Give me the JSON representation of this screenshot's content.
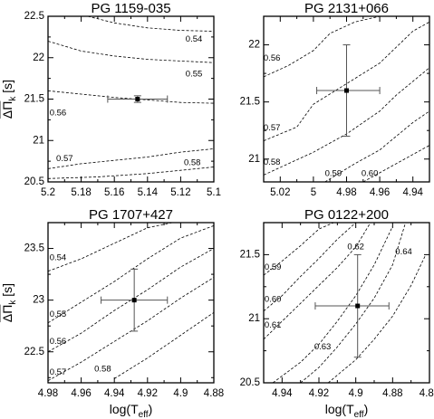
{
  "chart_data": [
    {
      "type": "contour",
      "title": "PG 1159-035",
      "ylabel_main": "ΔΠ",
      "ylabel_sub": "k",
      "ylabel_unit": " [s]",
      "xlabel_main": "",
      "xlabel_sub": "",
      "xlabel_tail": "",
      "xlim": [
        5.2,
        5.1
      ],
      "ylim": [
        20.5,
        22.5
      ],
      "xticks": [
        5.2,
        5.18,
        5.16,
        5.14,
        5.12,
        5.1
      ],
      "xtick_labels": [
        "5.2",
        "5.18",
        "5.16",
        "5.14",
        "5.12",
        "5.1"
      ],
      "yticks": [
        20.5,
        21,
        21.5,
        22,
        22.5
      ],
      "ytick_labels": [
        "20.5",
        "21",
        "21.5",
        "22",
        "22.5"
      ],
      "point": {
        "x": 5.146,
        "y": 21.5,
        "xerr": [
          5.164,
          5.128
        ],
        "yerr": [
          21.46,
          21.54
        ]
      },
      "contours": [
        {
          "label": "0.54",
          "lx": 5.112,
          "ly": 22.22,
          "x": [
            5.176,
            5.16,
            5.14,
            5.12,
            5.1
          ],
          "y": [
            22.5,
            22.42,
            22.36,
            22.33,
            22.32
          ]
        },
        {
          "label": "0.55",
          "lx": 5.112,
          "ly": 21.8,
          "x": [
            5.2,
            5.18,
            5.16,
            5.14,
            5.12,
            5.1
          ],
          "y": [
            22.2,
            22.08,
            22.02,
            21.98,
            21.96,
            21.94
          ]
        },
        {
          "label": "0.56",
          "lx": 5.194,
          "ly": 21.33,
          "x": [
            5.2,
            5.18,
            5.16,
            5.14,
            5.12,
            5.1
          ],
          "y": [
            21.6,
            21.56,
            21.52,
            21.49,
            21.46,
            21.45
          ]
        },
        {
          "label": "0.57",
          "lx": 5.19,
          "ly": 20.78,
          "x": [
            5.2,
            5.18,
            5.16,
            5.14,
            5.12,
            5.1
          ],
          "y": [
            20.66,
            20.72,
            20.76,
            20.8,
            20.86,
            20.9
          ]
        },
        {
          "label": "0.58",
          "lx": 5.113,
          "ly": 20.73,
          "x": [
            5.2,
            5.17,
            5.14,
            5.12,
            5.1
          ],
          "y": [
            20.54,
            20.56,
            20.6,
            20.64,
            20.68
          ]
        }
      ]
    },
    {
      "type": "contour",
      "title": "PG 2131+066",
      "ylabel_main": "",
      "ylabel_sub": "",
      "ylabel_unit": "",
      "xlabel_main": "",
      "xlabel_sub": "",
      "xlabel_tail": "",
      "xlim": [
        5.03,
        4.93
      ],
      "ylim": [
        20.8,
        22.25
      ],
      "xticks": [
        5.02,
        5.0,
        4.98,
        4.96,
        4.94
      ],
      "xtick_labels": [
        "5.02",
        "5",
        "4.98",
        "4.96",
        "4.94"
      ],
      "yticks": [
        21,
        21.5,
        22
      ],
      "ytick_labels": [
        "21",
        "21.5",
        "22"
      ],
      "point": {
        "x": 4.98,
        "y": 21.6,
        "xerr": [
          4.998,
          4.96
        ],
        "yerr": [
          21.2,
          22.0
        ]
      },
      "contours": [
        {
          "label": "0.56",
          "lx": 5.025,
          "ly": 21.88,
          "x": [
            5.03,
            5.015,
            5.0,
            4.99,
            4.975,
            4.96,
            4.95,
            4.93
          ],
          "y": [
            21.72,
            21.82,
            21.95,
            22.1,
            22.2,
            22.25,
            22.25,
            22.25
          ]
        },
        {
          "label": "0.57",
          "lx": 5.025,
          "ly": 21.27,
          "x": [
            5.03,
            5.01,
            5.0,
            4.98,
            4.96,
            4.95,
            4.94,
            4.93
          ],
          "y": [
            21.16,
            21.28,
            21.48,
            21.66,
            21.84,
            21.98,
            22.12,
            22.2
          ]
        },
        {
          "label": "0.58",
          "lx": 5.025,
          "ly": 20.97,
          "x": [
            5.03,
            5.0,
            4.98,
            4.96,
            4.95,
            4.94,
            4.93
          ],
          "y": [
            20.86,
            21.06,
            21.22,
            21.42,
            21.56,
            21.68,
            21.8
          ]
        },
        {
          "label": "0.59",
          "lx": 4.988,
          "ly": 20.87,
          "x": [
            4.993,
            4.975,
            4.96,
            4.95,
            4.94,
            4.93
          ],
          "y": [
            20.8,
            20.96,
            21.08,
            21.2,
            21.32,
            21.42
          ]
        },
        {
          "label": "0.60",
          "lx": 4.966,
          "ly": 20.87,
          "x": [
            4.97,
            4.955,
            4.94,
            4.93
          ],
          "y": [
            20.8,
            20.92,
            21.04,
            21.12
          ]
        }
      ]
    },
    {
      "type": "contour",
      "title": "PG 1707+427",
      "ylabel_main": "ΔΠ",
      "ylabel_sub": "k",
      "ylabel_unit": " [s]",
      "xlabel_main": "log(T",
      "xlabel_sub": "eff",
      "xlabel_tail": ")",
      "xlim": [
        4.98,
        4.88
      ],
      "ylim": [
        22.2,
        23.75
      ],
      "xticks": [
        4.98,
        4.96,
        4.94,
        4.92,
        4.9,
        4.88
      ],
      "xtick_labels": [
        "4.98",
        "4.96",
        "4.94",
        "4.92",
        "4.9",
        "4.88"
      ],
      "yticks": [
        22.5,
        23,
        23.5
      ],
      "ytick_labels": [
        "22.5",
        "23",
        "23.5"
      ],
      "point": {
        "x": 4.928,
        "y": 23.0,
        "xerr": [
          4.948,
          4.908
        ],
        "yerr": [
          22.7,
          23.3
        ]
      },
      "contours": [
        {
          "label": "0.54",
          "lx": 4.974,
          "ly": 23.41,
          "x": [
            4.98,
            4.96,
            4.94,
            4.92,
            4.905
          ],
          "y": [
            23.28,
            23.4,
            23.55,
            23.7,
            23.75
          ]
        },
        {
          "label": "0.55",
          "lx": 4.974,
          "ly": 22.86,
          "x": [
            4.98,
            4.96,
            4.94,
            4.92,
            4.9,
            4.88
          ],
          "y": [
            22.78,
            22.98,
            23.18,
            23.4,
            23.6,
            23.72
          ]
        },
        {
          "label": "0.56",
          "lx": 4.974,
          "ly": 22.6,
          "x": [
            4.98,
            4.96,
            4.94,
            4.92,
            4.9,
            4.88
          ],
          "y": [
            22.5,
            22.68,
            22.9,
            23.1,
            23.32,
            23.5
          ]
        },
        {
          "label": "0.57",
          "lx": 4.974,
          "ly": 22.3,
          "x": [
            4.98,
            4.96,
            4.94,
            4.92,
            4.9,
            4.88
          ],
          "y": [
            22.22,
            22.4,
            22.6,
            22.8,
            23.02,
            23.22
          ]
        },
        {
          "label": "0.58",
          "lx": 4.947,
          "ly": 22.33,
          "x": [
            4.94,
            4.92,
            4.9,
            4.88
          ],
          "y": [
            22.24,
            22.44,
            22.66,
            22.88
          ]
        }
      ]
    },
    {
      "type": "contour",
      "title": "PG 0122+200",
      "ylabel_main": "",
      "ylabel_sub": "",
      "ylabel_unit": "",
      "xlabel_main": "log(T",
      "xlabel_sub": "eff",
      "xlabel_tail": ")",
      "xlim": [
        4.95,
        4.86
      ],
      "ylim": [
        20.5,
        21.75
      ],
      "xticks": [
        4.94,
        4.92,
        4.9,
        4.88,
        4.86
      ],
      "xtick_labels": [
        "4.94",
        "4.92",
        "4.9",
        "4.88",
        "4.86"
      ],
      "yticks": [
        20.5,
        21,
        21.5
      ],
      "ytick_labels": [
        "20.5",
        "21",
        "21.5"
      ],
      "point": {
        "x": 4.899,
        "y": 21.1,
        "xerr": [
          4.922,
          4.882
        ],
        "yerr": [
          20.7,
          21.5
        ]
      },
      "contours": [
        {
          "label": "0.59",
          "lx": 4.945,
          "ly": 21.4,
          "x": [
            4.95,
            4.94,
            4.93,
            4.92,
            4.912
          ],
          "y": [
            21.34,
            21.45,
            21.57,
            21.7,
            21.75
          ]
        },
        {
          "label": "0.60",
          "lx": 4.945,
          "ly": 21.15,
          "x": [
            4.95,
            4.94,
            4.93,
            4.92,
            4.91,
            4.9
          ],
          "y": [
            21.06,
            21.18,
            21.33,
            21.47,
            21.62,
            21.75
          ]
        },
        {
          "label": "0.61",
          "lx": 4.945,
          "ly": 20.95,
          "x": [
            4.95,
            4.94,
            4.93,
            4.92,
            4.91,
            4.9,
            4.892
          ],
          "y": [
            20.84,
            20.98,
            21.12,
            21.26,
            21.4,
            21.56,
            21.75
          ]
        },
        {
          "label": "0.62",
          "lx": 4.9,
          "ly": 21.56,
          "x": [
            4.945,
            4.93,
            4.92,
            4.91,
            4.9,
            4.89,
            4.88
          ],
          "y": [
            20.5,
            20.66,
            20.8,
            20.98,
            21.18,
            21.42,
            21.72
          ]
        },
        {
          "label": "0.63",
          "lx": 4.918,
          "ly": 20.78,
          "x": [
            4.93,
            4.92,
            4.91,
            4.9,
            4.89,
            4.88,
            4.873
          ],
          "y": [
            20.5,
            20.62,
            20.78,
            20.96,
            21.16,
            21.42,
            21.75
          ]
        },
        {
          "label": "0.64",
          "lx": 4.874,
          "ly": 21.52,
          "x": [
            4.915,
            4.9,
            4.89,
            4.88,
            4.87,
            4.862
          ],
          "y": [
            20.5,
            20.68,
            20.84,
            21.02,
            21.26,
            21.5
          ]
        }
      ]
    }
  ]
}
